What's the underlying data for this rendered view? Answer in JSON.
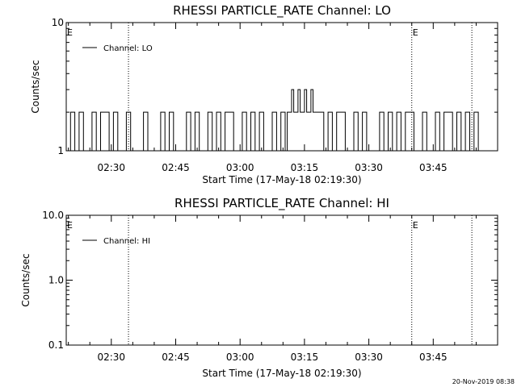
{
  "footer": {
    "timestamp": "20-Nov-2019 08:38"
  },
  "chart_data": [
    {
      "type": "line",
      "title": "RHESSI PARTICLE_RATE Channel: LO",
      "xlabel": "Start Time (17-May-18 02:19:30)",
      "ylabel": "Counts/sec",
      "y_scale": "log",
      "ylim": [
        1,
        10
      ],
      "xlim": [
        "02:19:30",
        "04:00:00"
      ],
      "x_ticks": [
        "02:30",
        "02:45",
        "03:00",
        "03:15",
        "03:30",
        "03:45"
      ],
      "y_ticks": [
        "10",
        "1"
      ],
      "event_lines": [
        "02:34:00",
        "03:40:00",
        "03:54:00"
      ],
      "event_markers": [
        {
          "text": "E",
          "x": "02:19:30"
        },
        {
          "text": "E",
          "x": "03:40:00"
        }
      ],
      "legend": {
        "position": "top-left",
        "entries": [
          "Channel: LO"
        ]
      },
      "series": [
        {
          "name": "Channel: LO",
          "x": [
            "02:19:30",
            "02:20:30",
            "02:21:30",
            "02:22:30",
            "02:23:30",
            "02:24:30",
            "02:25:30",
            "02:26:30",
            "02:27:30",
            "02:28:30",
            "02:29:30",
            "02:30:30",
            "02:31:30",
            "02:32:30",
            "02:33:30",
            "02:34:30",
            "02:35:30",
            "02:36:30",
            "02:37:30",
            "02:38:30",
            "02:39:30",
            "02:40:30",
            "02:41:30",
            "02:42:30",
            "02:43:30",
            "02:44:30",
            "02:45:30",
            "02:46:30",
            "02:47:30",
            "02:48:30",
            "02:49:30",
            "02:50:30",
            "02:51:30",
            "02:52:30",
            "02:53:30",
            "02:54:30",
            "02:55:30",
            "02:56:30",
            "02:57:30",
            "02:58:30",
            "02:59:30",
            "03:00:30",
            "03:01:30",
            "03:02:30",
            "03:03:30",
            "03:04:30",
            "03:05:30",
            "03:06:30",
            "03:07:30",
            "03:08:30",
            "03:09:30",
            "03:10:00",
            "03:10:30",
            "03:11:00",
            "03:11:30",
            "03:12:00",
            "03:12:30",
            "03:13:00",
            "03:13:30",
            "03:14:00",
            "03:14:30",
            "03:15:00",
            "03:15:30",
            "03:16:00",
            "03:16:30",
            "03:17:00",
            "03:17:30",
            "03:18:00",
            "03:18:30",
            "03:19:30",
            "03:20:30",
            "03:21:30",
            "03:22:30",
            "03:23:30",
            "03:24:30",
            "03:25:30",
            "03:26:30",
            "03:27:30",
            "03:28:30",
            "03:29:30",
            "03:30:30",
            "03:31:30",
            "03:32:30",
            "03:33:30",
            "03:34:30",
            "03:35:30",
            "03:36:30",
            "03:37:30",
            "03:38:30",
            "03:39:30",
            "03:40:30",
            "03:41:30",
            "03:42:30",
            "03:43:30",
            "03:44:30",
            "03:45:30",
            "03:46:30",
            "03:47:30",
            "03:48:30",
            "03:49:30",
            "03:50:30",
            "03:51:30",
            "03:52:30",
            "03:53:30",
            "03:54:30",
            "03:55:30",
            "03:56:30",
            "03:57:30",
            "03:58:30",
            "03:59:30"
          ],
          "values": [
            1,
            2,
            1,
            2,
            1,
            1,
            2,
            1,
            2,
            2,
            1,
            2,
            1,
            1,
            2,
            1,
            1,
            1,
            2,
            1,
            1,
            1,
            2,
            1,
            2,
            1,
            1,
            1,
            2,
            1,
            2,
            1,
            1,
            2,
            1,
            2,
            1,
            2,
            2,
            1,
            1,
            2,
            1,
            2,
            1,
            2,
            1,
            1,
            2,
            1,
            2,
            2,
            1,
            2,
            2,
            3,
            2,
            2,
            3,
            2,
            2,
            3,
            2,
            2,
            3,
            2,
            2,
            2,
            2,
            1,
            2,
            1,
            2,
            2,
            1,
            1,
            2,
            1,
            2,
            1,
            1,
            1,
            2,
            1,
            2,
            1,
            2,
            1,
            2,
            2,
            1,
            1,
            2,
            1,
            1,
            2,
            1,
            2,
            2,
            1,
            2,
            1,
            2,
            1,
            2,
            1,
            1,
            1,
            1,
            1
          ]
        }
      ]
    },
    {
      "type": "line",
      "title": "RHESSI PARTICLE_RATE Channel: HI",
      "xlabel": "Start Time (17-May-18 02:19:30)",
      "ylabel": "Counts/sec",
      "y_scale": "log",
      "ylim": [
        0.1,
        10
      ],
      "xlim": [
        "02:19:30",
        "04:00:00"
      ],
      "x_ticks": [
        "02:30",
        "02:45",
        "03:00",
        "03:15",
        "03:30",
        "03:45"
      ],
      "y_ticks": [
        "10.0",
        "1.0",
        "0.1"
      ],
      "event_lines": [
        "02:34:00",
        "03:40:00",
        "03:54:00"
      ],
      "event_markers": [
        {
          "text": "E",
          "x": "02:19:30"
        },
        {
          "text": "E",
          "x": "03:40:00"
        }
      ],
      "legend": {
        "position": "top-left",
        "entries": [
          "Channel: HI"
        ]
      },
      "series": [
        {
          "name": "Channel: HI",
          "x": [],
          "values": []
        }
      ]
    }
  ]
}
